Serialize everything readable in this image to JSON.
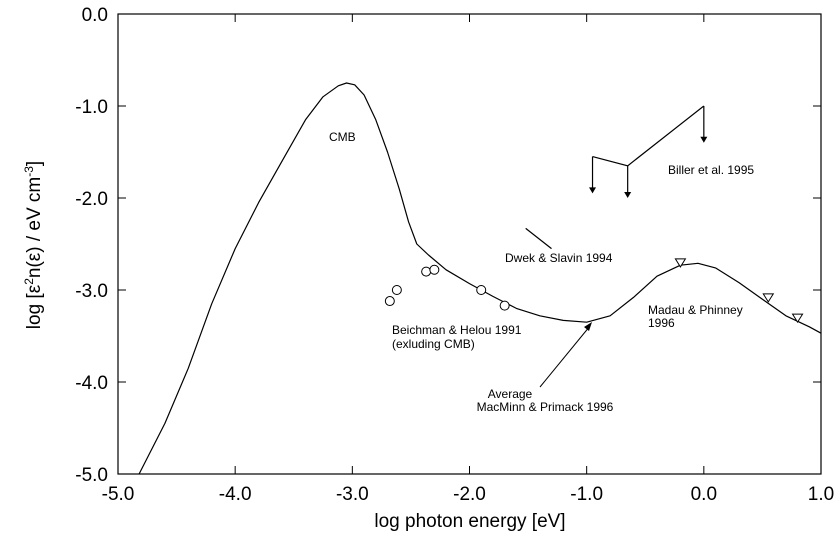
{
  "chart_data": {
    "type": "line",
    "title": "",
    "xlabel": "log photon energy [eV]",
    "ylabel": {
      "prefix": "log [",
      "eps": "ε",
      "sup2": "2",
      "mid": "n(ε) / eV cm",
      "supm3": "-3",
      "suffix": "]"
    },
    "xlim": [
      -5.0,
      1.0
    ],
    "ylim": [
      -5.0,
      0.0
    ],
    "xticks": [
      -5.0,
      -4.0,
      -3.0,
      -2.0,
      -1.0,
      0.0,
      1.0
    ],
    "yticks": [
      0.0,
      -1.0,
      -2.0,
      -3.0,
      -4.0,
      -5.0
    ],
    "xtick_labels": [
      "-5.0",
      "-4.0",
      "-3.0",
      "-2.0",
      "-1.0",
      "0.0",
      "1.0"
    ],
    "ytick_labels": [
      "0.0",
      "-1.0",
      "-2.0",
      "-3.0",
      "-4.0",
      "-5.0"
    ],
    "grid": false,
    "series": [
      {
        "x": [
          -4.82,
          -4.6,
          -4.4,
          -4.2,
          -4.0,
          -3.8,
          -3.6,
          -3.4,
          -3.25,
          -3.12,
          -3.05,
          -2.98,
          -2.9,
          -2.8,
          -2.7,
          -2.6,
          -2.52,
          -2.45,
          -2.35,
          -2.2,
          -2.0,
          -1.8,
          -1.6,
          -1.4,
          -1.2,
          -1.0,
          -0.8,
          -0.6,
          -0.4,
          -0.2,
          -0.05,
          0.1,
          0.3,
          0.5,
          0.7,
          0.9,
          1.0
        ],
        "y": [
          -5.0,
          -4.45,
          -3.85,
          -3.15,
          -2.55,
          -2.05,
          -1.6,
          -1.15,
          -0.9,
          -0.78,
          -0.75,
          -0.77,
          -0.88,
          -1.15,
          -1.5,
          -1.9,
          -2.26,
          -2.5,
          -2.62,
          -2.78,
          -2.93,
          -3.07,
          -3.2,
          -3.28,
          -3.33,
          -3.35,
          -3.28,
          -3.08,
          -2.85,
          -2.73,
          -2.71,
          -2.76,
          -2.92,
          -3.1,
          -3.28,
          -3.4,
          -3.47
        ]
      },
      {
        "x": [
          -1.52,
          -1.3
        ],
        "y": [
          -2.33,
          -2.55
        ]
      }
    ],
    "beichman_points": {
      "x": [
        -2.68,
        -2.62,
        -2.37,
        -2.3,
        -1.9,
        -1.7
      ],
      "y": [
        -3.12,
        -3.0,
        -2.8,
        -2.78,
        -3.0,
        -3.17
      ]
    },
    "madau_points": {
      "x": [
        -0.2,
        0.55,
        0.8
      ],
      "y": [
        -2.7,
        -3.08,
        -3.3
      ]
    },
    "biller_limits": {
      "x": [
        -0.95,
        -0.65,
        0.0
      ],
      "y": [
        -1.55,
        -1.65,
        -1.0
      ],
      "arrow_tips_y": [
        -1.95,
        -2.0,
        -1.4
      ]
    },
    "annotations": {
      "cmb": "CMB",
      "biller": "Biller et al. 1995",
      "dwek": "Dwek & Slavin 1994",
      "madau_1": "Madau & Phinney",
      "madau_2": "1996",
      "beichman_1": "Beichman & Helou 1991",
      "beichman_2": "(exluding CMB)",
      "average_1": "Average",
      "average_2": "MacMinn & Primack 1996"
    }
  }
}
